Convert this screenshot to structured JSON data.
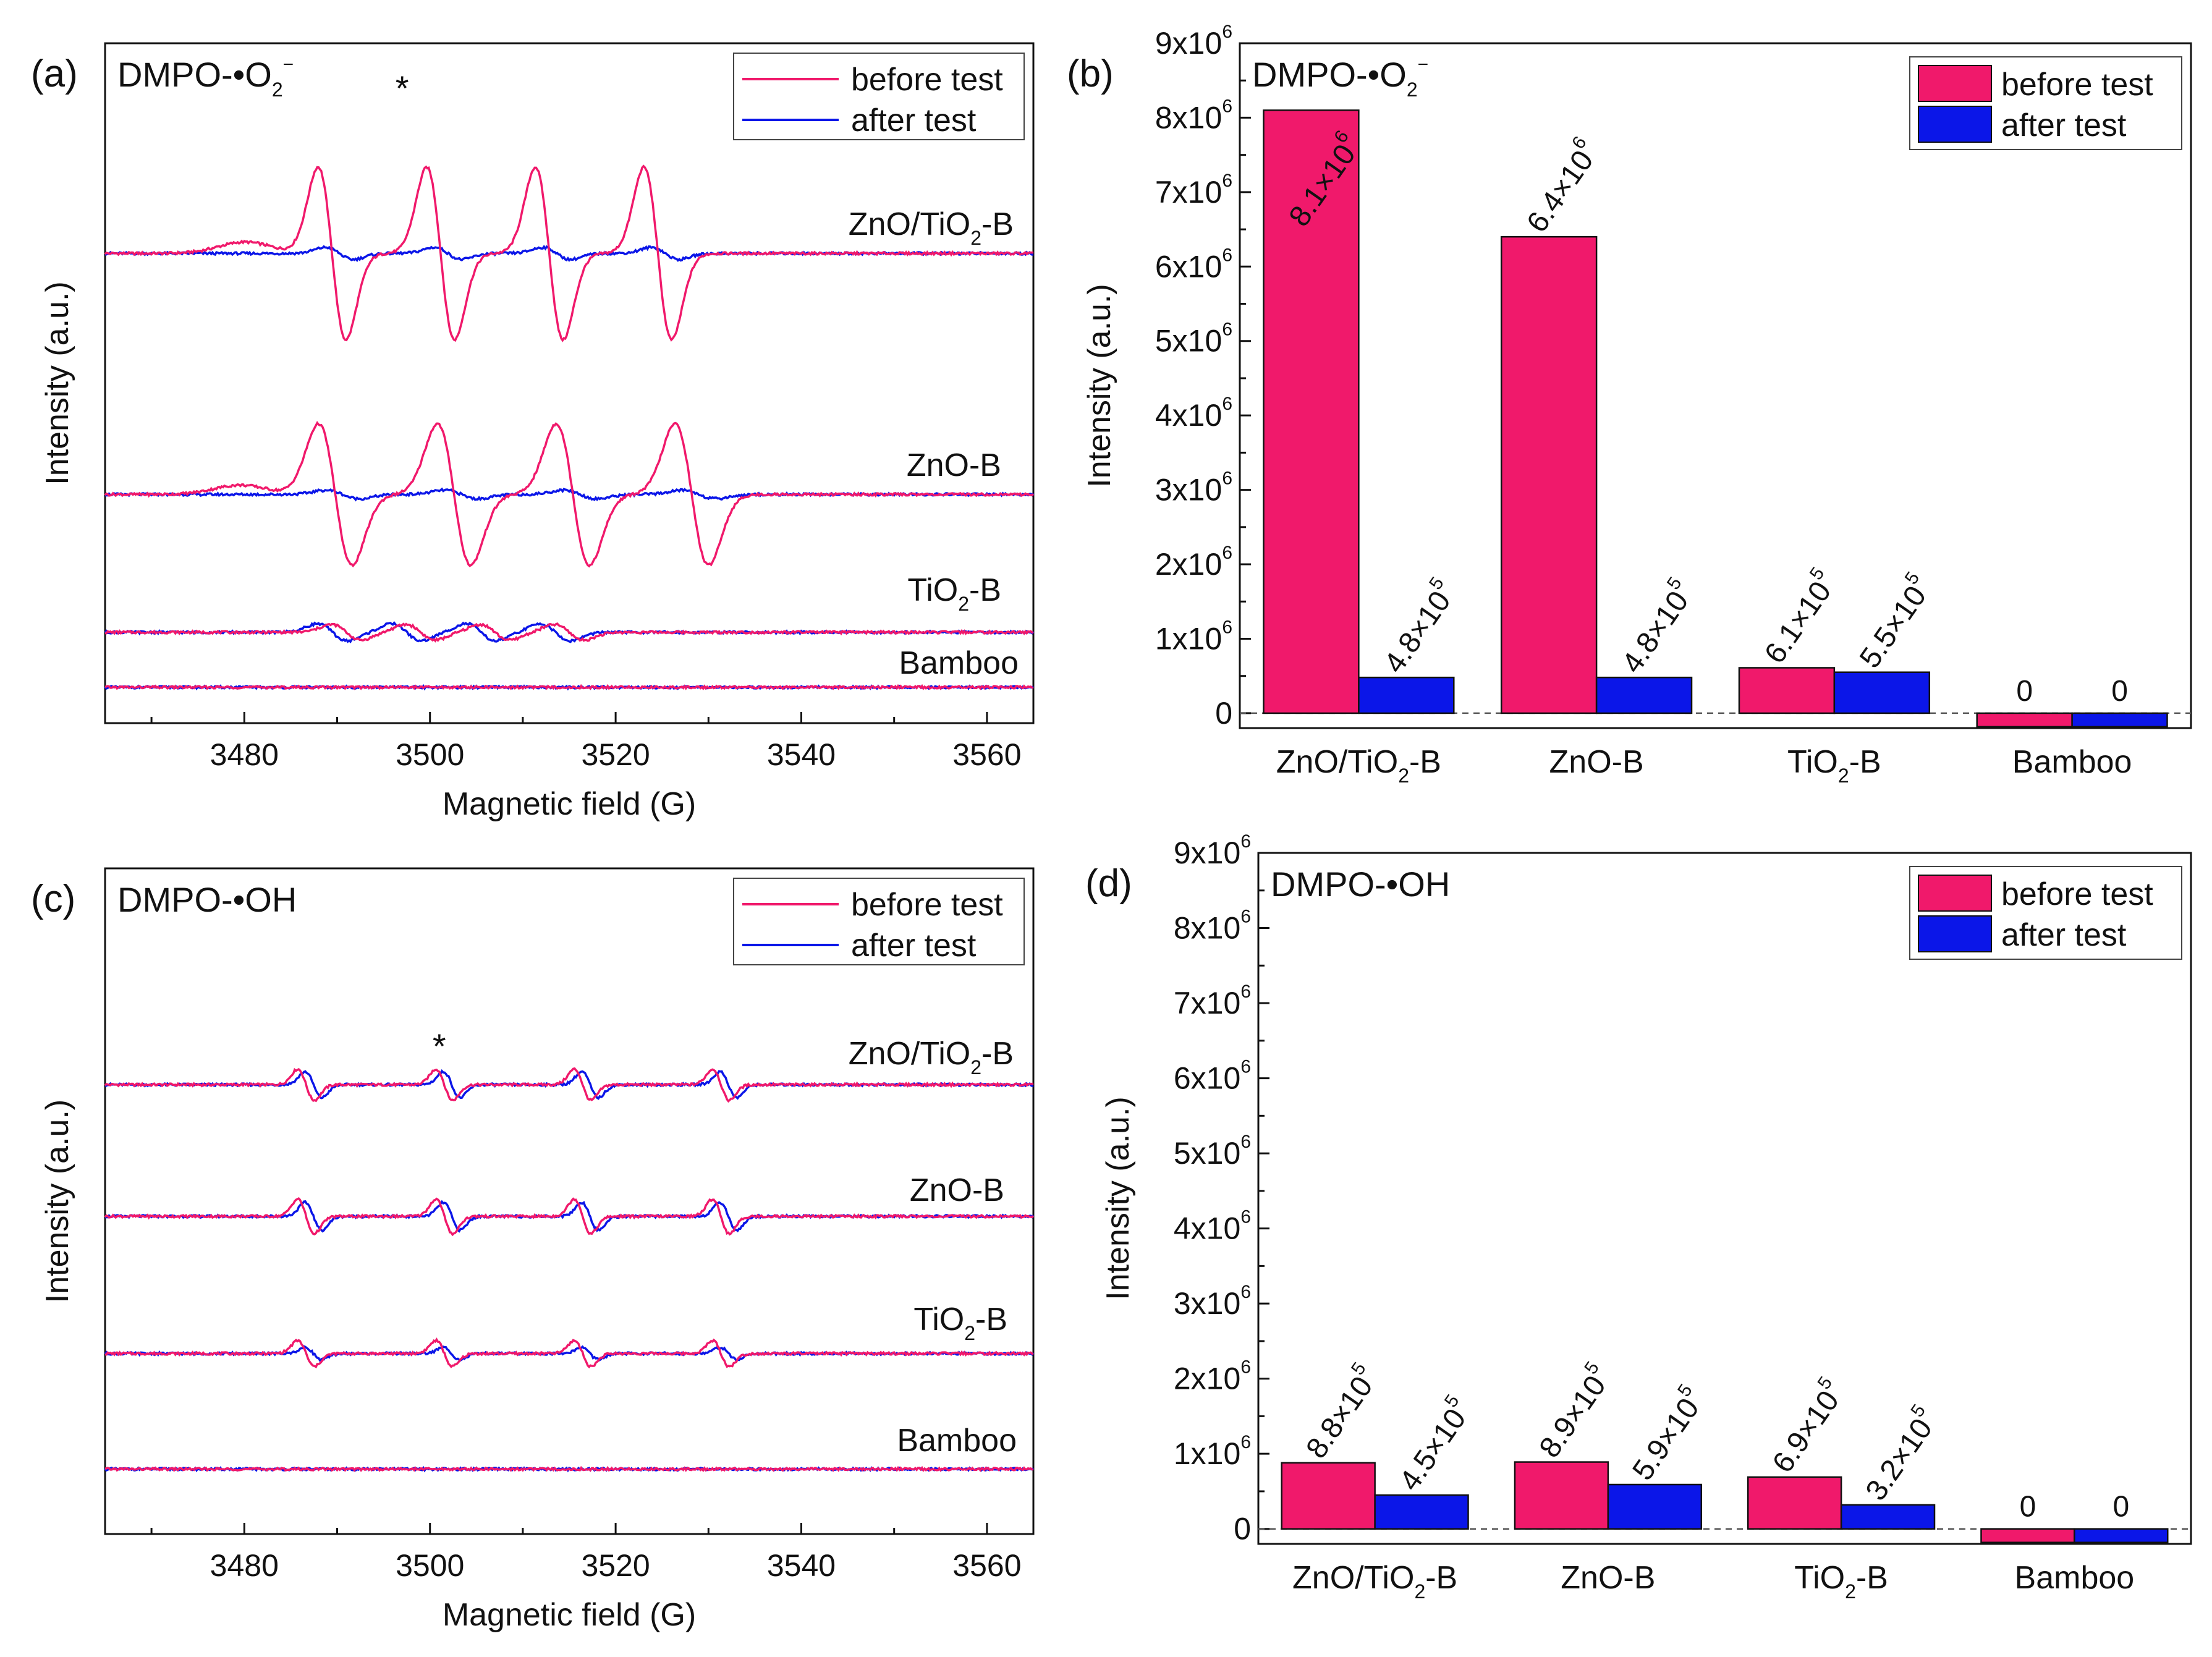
{
  "colors": {
    "before": "#f0196b",
    "after": "#0b16e8",
    "axis": "#111111"
  },
  "legend": {
    "before": "before test",
    "after": "after test"
  },
  "spectra": [
    {
      "panel": "(a)",
      "title": "DMPO-•O",
      "title_sub": "2",
      "title_sup": "−",
      "xlabel": "Magnetic field (G)",
      "ylabel": "Intensity (a.u.)",
      "xlim": [
        3465,
        3565
      ],
      "xticks": [
        "3480",
        "3500",
        "3520",
        "3540",
        "3560"
      ],
      "peak_marker": "*",
      "peak_marker_field": 3497,
      "samples": [
        {
          "name": "ZnO/TiO",
          "name_sub": "2",
          "name_end": "-B",
          "before_amp": 1.0,
          "after_amp": 0.07,
          "center": 3507,
          "spacing": 11.7,
          "width": 1.5
        },
        {
          "name": "ZnO-B",
          "name_sub": "",
          "name_end": "",
          "before_amp": 0.82,
          "after_amp": 0.05,
          "center": 3509,
          "spacing": 12.8,
          "width": 1.8
        },
        {
          "name": "TiO",
          "name_sub": "2",
          "name_end": "-B",
          "before_amp": 0.09,
          "after_amp": 0.1,
          "center": 3503,
          "spacing": 8.0,
          "width": 1.6
        },
        {
          "name": "Bamboo",
          "name_sub": "",
          "name_end": "",
          "before_amp": 0,
          "after_amp": 0,
          "center": 3500,
          "spacing": 10,
          "width": 1.5
        }
      ]
    },
    {
      "panel": "(c)",
      "title": "DMPO-•OH",
      "title_sub": "",
      "title_sup": "",
      "xlabel": "Magnetic field (G)",
      "ylabel": "Intensity (a.u.)",
      "xlim": [
        3465,
        3565
      ],
      "xticks": [
        "3480",
        "3500",
        "3520",
        "3540",
        "3560"
      ],
      "peak_marker": "*",
      "peak_marker_field": 3501,
      "samples": [
        {
          "name": "ZnO/TiO",
          "name_sub": "2",
          "name_end": "-B",
          "before_amp": 0.18,
          "after_amp": 0.15,
          "center": 3509,
          "spacing": 14.9,
          "width": 0.9
        },
        {
          "name": "ZnO-B",
          "name_sub": "",
          "name_end": "",
          "before_amp": 0.2,
          "after_amp": 0.16,
          "center": 3509,
          "spacing": 14.9,
          "width": 0.9
        },
        {
          "name": "TiO",
          "name_sub": "2",
          "name_end": "-B",
          "before_amp": 0.15,
          "after_amp": 0.07,
          "center": 3509,
          "spacing": 14.9,
          "width": 0.9
        },
        {
          "name": "Bamboo",
          "name_sub": "",
          "name_end": "",
          "before_amp": 0,
          "after_amp": 0,
          "center": 3509,
          "spacing": 14.9,
          "width": 0.9
        }
      ]
    }
  ],
  "chart_data": [
    {
      "panel": "(b)",
      "type": "bar",
      "title": "DMPO-•O",
      "title_sub": "2",
      "title_sup": "−",
      "ylabel": "Intensity (a.u.)",
      "ylim": [
        -200000,
        9000000
      ],
      "yticks": [
        {
          "value": 0,
          "base": "0",
          "exp": ""
        },
        {
          "value": 1000000,
          "base": "1x10",
          "exp": "6"
        },
        {
          "value": 2000000,
          "base": "2x10",
          "exp": "6"
        },
        {
          "value": 3000000,
          "base": "3x10",
          "exp": "6"
        },
        {
          "value": 4000000,
          "base": "4x10",
          "exp": "6"
        },
        {
          "value": 5000000,
          "base": "5x10",
          "exp": "6"
        },
        {
          "value": 6000000,
          "base": "6x10",
          "exp": "6"
        },
        {
          "value": 7000000,
          "base": "7x10",
          "exp": "6"
        },
        {
          "value": 8000000,
          "base": "8x10",
          "exp": "6"
        },
        {
          "value": 9000000,
          "base": "9x10",
          "exp": "6"
        }
      ],
      "categories": [
        {
          "name": "ZnO/TiO",
          "sub": "2",
          "end": "-B"
        },
        {
          "name": "ZnO-B",
          "sub": "",
          "end": ""
        },
        {
          "name": "TiO",
          "sub": "2",
          "end": "-B"
        },
        {
          "name": "Bamboo",
          "sub": "",
          "end": ""
        }
      ],
      "series": [
        {
          "name": "before test",
          "values": [
            8100000,
            6400000,
            610000,
            0
          ],
          "labels": [
            {
              "base": "8.1×10",
              "exp": "6"
            },
            {
              "base": "6.4×10",
              "exp": "6"
            },
            {
              "base": "6.1×10",
              "exp": "5"
            },
            {
              "base": "0",
              "exp": ""
            }
          ]
        },
        {
          "name": "after test",
          "values": [
            480000,
            480000,
            550000,
            0
          ],
          "labels": [
            {
              "base": "4.8×10",
              "exp": "5"
            },
            {
              "base": "4.8×10",
              "exp": "5"
            },
            {
              "base": "5.5×10",
              "exp": "5"
            },
            {
              "base": "0",
              "exp": ""
            }
          ]
        }
      ]
    },
    {
      "panel": "(d)",
      "type": "bar",
      "title": "DMPO-•OH",
      "title_sub": "",
      "title_sup": "",
      "ylabel": "Intensity (a.u.)",
      "ylim": [
        -200000,
        9000000
      ],
      "yticks": [
        {
          "value": 0,
          "base": "0",
          "exp": ""
        },
        {
          "value": 1000000,
          "base": "1x10",
          "exp": "6"
        },
        {
          "value": 2000000,
          "base": "2x10",
          "exp": "6"
        },
        {
          "value": 3000000,
          "base": "3x10",
          "exp": "6"
        },
        {
          "value": 4000000,
          "base": "4x10",
          "exp": "6"
        },
        {
          "value": 5000000,
          "base": "5x10",
          "exp": "6"
        },
        {
          "value": 6000000,
          "base": "6x10",
          "exp": "6"
        },
        {
          "value": 7000000,
          "base": "7x10",
          "exp": "6"
        },
        {
          "value": 8000000,
          "base": "8x10",
          "exp": "6"
        },
        {
          "value": 9000000,
          "base": "9x10",
          "exp": "6"
        }
      ],
      "categories": [
        {
          "name": "ZnO/TiO",
          "sub": "2",
          "end": "-B"
        },
        {
          "name": "ZnO-B",
          "sub": "",
          "end": ""
        },
        {
          "name": "TiO",
          "sub": "2",
          "end": "-B"
        },
        {
          "name": "Bamboo",
          "sub": "",
          "end": ""
        }
      ],
      "series": [
        {
          "name": "before test",
          "values": [
            880000,
            890000,
            690000,
            0
          ],
          "labels": [
            {
              "base": "8.8×10",
              "exp": "5"
            },
            {
              "base": "8.9×10",
              "exp": "5"
            },
            {
              "base": "6.9×10",
              "exp": "5"
            },
            {
              "base": "0",
              "exp": ""
            }
          ]
        },
        {
          "name": "after test",
          "values": [
            450000,
            590000,
            320000,
            0
          ],
          "labels": [
            {
              "base": "4.5×10",
              "exp": "5"
            },
            {
              "base": "5.9×10",
              "exp": "5"
            },
            {
              "base": "3.2×10",
              "exp": "5"
            },
            {
              "base": "0",
              "exp": ""
            }
          ]
        }
      ]
    }
  ]
}
